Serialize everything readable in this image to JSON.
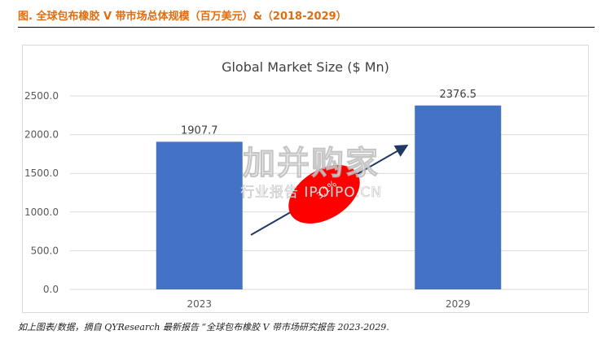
{
  "figure": {
    "title": "图.  全球包布橡胶 V 带市场总体规模（百万美元）&（2018-2029）",
    "footnote": "如上图表/数据，摘自 QYResearch 最新报告 “全球包布橡胶 V 带市场研究报告 2023-2029."
  },
  "watermark": {
    "main": "加并购家",
    "sub": "行业报告 IPOIPO.CN"
  },
  "colors": {
    "title": "#e46c0a",
    "bar": "#4472c4",
    "growth_ellipse": "#ff0000",
    "arrow": "#1f3864"
  },
  "chart_data": {
    "type": "bar",
    "title": "Global Market Size ($ Mn)",
    "xlabel": "",
    "ylabel": "",
    "categories": [
      "2023",
      "2029"
    ],
    "values": [
      1907.7,
      2376.5
    ],
    "value_labels": [
      "1907.7",
      "2376.5"
    ],
    "ylim": [
      0,
      2500
    ],
    "yticks": [
      "0.0",
      "500.0",
      "1000.0",
      "1500.0",
      "2000.0",
      "2500.0"
    ],
    "grid": true,
    "legend": "none",
    "annotation": "3.1%"
  }
}
